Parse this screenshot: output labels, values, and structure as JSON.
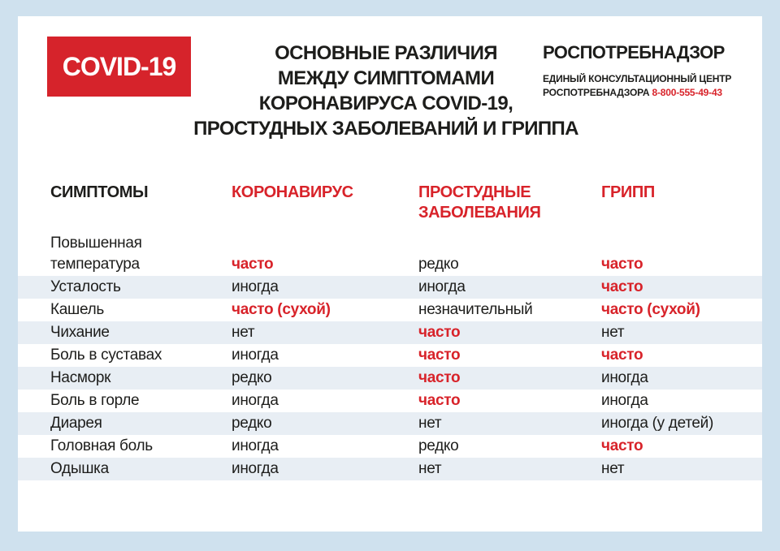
{
  "badge": {
    "label": "COVID-19"
  },
  "title": {
    "lines": [
      "ОСНОВНЫЕ РАЗЛИЧИЯ",
      "МЕЖДУ СИМПТОМАМИ",
      "КОРОНАВИРУСА COVID-19,",
      "ПРОСТУДНЫХ ЗАБОЛЕВАНИЙ И ГРИППА"
    ]
  },
  "agency": {
    "name": "РОСПОТРЕБНАДЗОР",
    "sub_line1": "ЕДИНЫЙ КОНСУЛЬТАЦИОННЫЙ ЦЕНТР",
    "sub_line2": "РОСПОТРЕБНАДЗОРА",
    "phone": "8-800-555-49-43"
  },
  "table": {
    "headers": [
      "СИМПТОМЫ",
      "КОРОНАВИРУС",
      "ПРОСТУДНЫЕ ЗАБОЛЕВАНИЯ",
      "ГРИПП"
    ],
    "rows": [
      {
        "symptom": "Повышенная температура",
        "striped": false,
        "tall": true,
        "values": [
          {
            "text": "часто",
            "highlight": true
          },
          {
            "text": "редко",
            "highlight": false
          },
          {
            "text": "часто",
            "highlight": true
          }
        ]
      },
      {
        "symptom": "Усталость",
        "striped": true,
        "tall": false,
        "values": [
          {
            "text": "иногда",
            "highlight": false
          },
          {
            "text": "иногда",
            "highlight": false
          },
          {
            "text": "часто",
            "highlight": true
          }
        ]
      },
      {
        "symptom": "Кашель",
        "striped": false,
        "tall": false,
        "values": [
          {
            "text": "часто (сухой)",
            "highlight": true
          },
          {
            "text": "незначительный",
            "highlight": false
          },
          {
            "text": "часто (сухой)",
            "highlight": true
          }
        ]
      },
      {
        "symptom": "Чихание",
        "striped": true,
        "tall": false,
        "values": [
          {
            "text": "нет",
            "highlight": false
          },
          {
            "text": "часто",
            "highlight": true
          },
          {
            "text": "нет",
            "highlight": false
          }
        ]
      },
      {
        "symptom": "Боль в суставах",
        "striped": false,
        "tall": false,
        "values": [
          {
            "text": "иногда",
            "highlight": false
          },
          {
            "text": "часто",
            "highlight": true
          },
          {
            "text": "часто",
            "highlight": true
          }
        ]
      },
      {
        "symptom": "Насморк",
        "striped": true,
        "tall": false,
        "values": [
          {
            "text": "редко",
            "highlight": false
          },
          {
            "text": "часто",
            "highlight": true
          },
          {
            "text": "иногда",
            "highlight": false
          }
        ]
      },
      {
        "symptom": "Боль в горле",
        "striped": false,
        "tall": false,
        "values": [
          {
            "text": "иногда",
            "highlight": false
          },
          {
            "text": "часто",
            "highlight": true
          },
          {
            "text": "иногда",
            "highlight": false
          }
        ]
      },
      {
        "symptom": "Диарея",
        "striped": true,
        "tall": false,
        "values": [
          {
            "text": "редко",
            "highlight": false
          },
          {
            "text": "нет",
            "highlight": false
          },
          {
            "text": "иногда (у детей)",
            "highlight": false
          }
        ]
      },
      {
        "symptom": "Головная боль",
        "striped": false,
        "tall": false,
        "values": [
          {
            "text": "иногда",
            "highlight": false
          },
          {
            "text": "редко",
            "highlight": false
          },
          {
            "text": "часто",
            "highlight": true
          }
        ]
      },
      {
        "symptom": "Одышка",
        "striped": true,
        "tall": false,
        "values": [
          {
            "text": "иногда",
            "highlight": false
          },
          {
            "text": "нет",
            "highlight": false
          },
          {
            "text": "нет",
            "highlight": false
          }
        ]
      }
    ]
  },
  "colors": {
    "accent_red": "#d6232b",
    "text_red": "#d8232a",
    "page_background": "#cfe1ee",
    "stripe": "#e8eef4",
    "text_black": "#1d1d1b"
  }
}
